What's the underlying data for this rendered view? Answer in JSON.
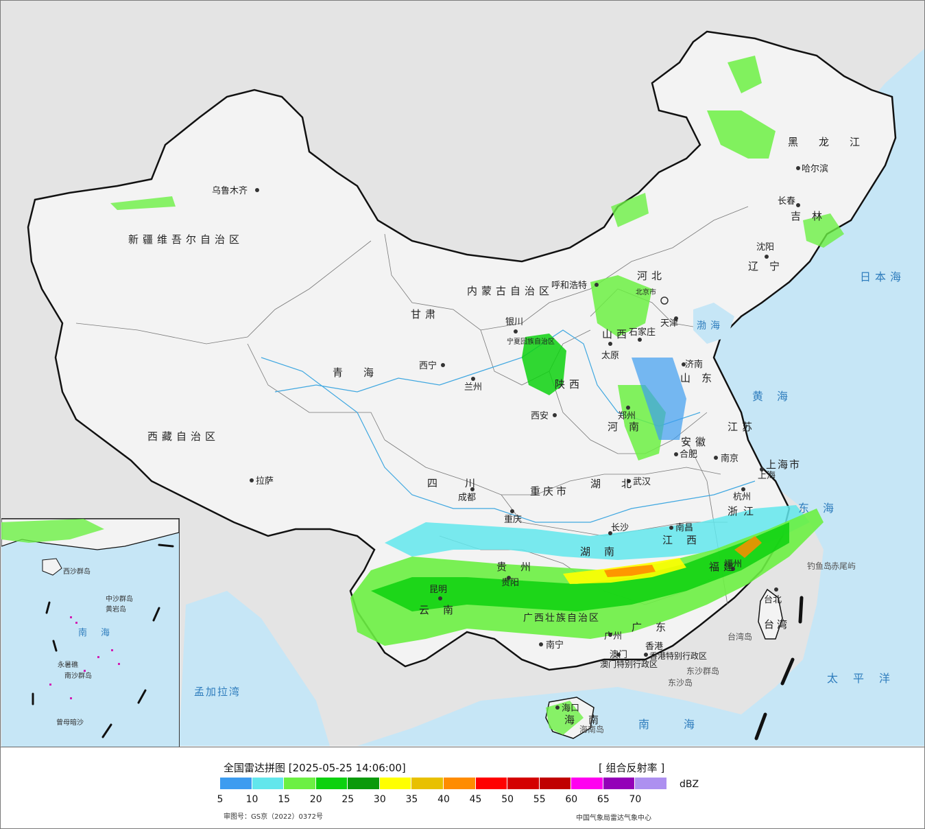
{
  "legend": {
    "title": "全国雷达拼图 [2025-05-25 14:06:00]",
    "product": "[ 组合反射率 ]",
    "unit": "dBZ",
    "ticks": [
      "5",
      "10",
      "15",
      "20",
      "25",
      "30",
      "35",
      "40",
      "45",
      "50",
      "55",
      "60",
      "65",
      "70"
    ],
    "colors": [
      "#3d9cf0",
      "#62e6ec",
      "#6cf043",
      "#0dd10f",
      "#0a9a0a",
      "#ffff00",
      "#e8c000",
      "#ff8c00",
      "#ff0000",
      "#d40000",
      "#c00000",
      "#ff00f0",
      "#9400b8",
      "#ad90f0"
    ],
    "approval": "审图号：GS京（2022）0372号",
    "source": "中国气象局雷达气象中心"
  },
  "colors": {
    "ocean": "#c6e6f6",
    "land": "#f2f2f2",
    "outside": "#e4e4e4",
    "border": "#111111"
  },
  "cities": [
    "乌鲁木齐",
    "拉萨",
    "西宁",
    "兰州",
    "银川",
    "呼和浩特",
    "北京市",
    "天津",
    "石家庄",
    "太原",
    "济南",
    "郑州",
    "西安",
    "成都",
    "重庆",
    "贵阳",
    "昆明",
    "南宁",
    "广州",
    "澳门",
    "香港",
    "长沙",
    "武汉",
    "合肥",
    "南京",
    "上海",
    "杭州",
    "南昌",
    "福州",
    "台北",
    "海口",
    "沈阳",
    "长春",
    "哈尔滨"
  ],
  "regions": [
    "新疆维吾尔自治区",
    "西藏自治区",
    "青海",
    "甘肃",
    "四川",
    "云南",
    "内蒙古自治区",
    "黑龙江",
    "吉林",
    "辽宁",
    "河北",
    "山西",
    "山东",
    "河南",
    "陕西",
    "宁夏回族自治区",
    "湖北",
    "湖南",
    "江西",
    "安徽",
    "江苏",
    "浙江",
    "福建",
    "广东",
    "广西壮族自治区",
    "贵州",
    "海南",
    "台湾",
    "重庆市",
    "上海市",
    "香港特别行政区",
    "澳门特别行政区"
  ],
  "sea_labels": [
    "日本海",
    "渤海",
    "黄海",
    "东海",
    "南海",
    "太平洋",
    "孟加拉湾"
  ],
  "islands": [
    "钓鱼岛",
    "赤尾屿",
    "台湾岛",
    "东沙群岛",
    "东沙岛",
    "海南岛",
    "西沙群岛",
    "中沙群岛",
    "黄岩岛",
    "南沙群岛",
    "永暑礁",
    "曾母暗沙"
  ]
}
